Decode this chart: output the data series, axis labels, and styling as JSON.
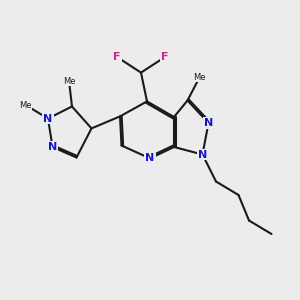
{
  "bg_color": "#ececec",
  "bond_color": "#1a1a1a",
  "nitrogen_color": "#1515cc",
  "fluorine_color": "#cc2299",
  "bond_width": 1.5,
  "font_size_N": 8,
  "font_size_F": 8,
  "font_size_Me": 6,
  "figsize": [
    3.0,
    3.0
  ],
  "dpi": 100,
  "xlim": [
    0,
    10
  ],
  "ylim": [
    0,
    10
  ]
}
